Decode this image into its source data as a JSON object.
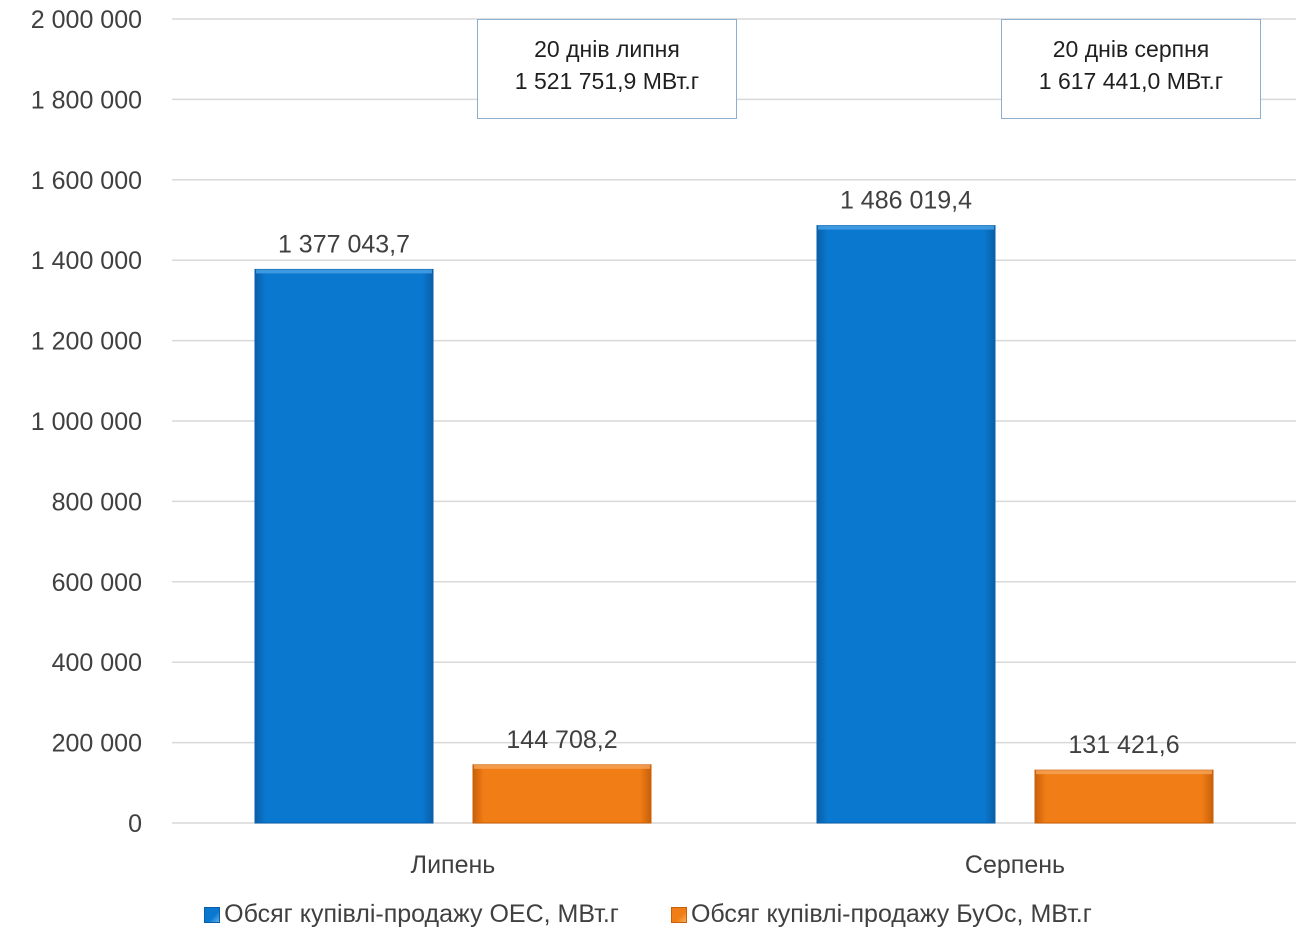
{
  "chart_data": {
    "type": "bar",
    "title": "",
    "xlabel": "",
    "ylabel": "",
    "categories": [
      "Липень",
      "Серпень"
    ],
    "ylim": [
      0,
      2000000
    ],
    "yticks": [
      0,
      200000,
      400000,
      600000,
      800000,
      1000000,
      1200000,
      1400000,
      1600000,
      1800000,
      2000000
    ],
    "ytick_labels": [
      "0",
      "200 000",
      "400 000",
      "600 000",
      "800 000",
      "1 000 000",
      "1 200 000",
      "1 400 000",
      "1 600 000",
      "1 800 000",
      "2 000 000"
    ],
    "grid": true,
    "legend_position": "bottom",
    "series": [
      {
        "name": "Обсяг купівлі-продажу ОЕС, МВт.г",
        "color": "#0070c0",
        "values": [
          1377043.7,
          1486019.4
        ],
        "labels": [
          "1 377 043,7",
          "1 486 019,4"
        ]
      },
      {
        "name": "Обсяг купівлі-продажу БуОс, МВт.г",
        "color": "#ed7d1a",
        "values": [
          144708.2,
          131421.6
        ],
        "labels": [
          "144 708,2",
          "131 421,6"
        ]
      }
    ],
    "annotations": [
      {
        "line1": "20 днів липня",
        "line2": "1 521 751,9 МВт.г"
      },
      {
        "line1": "20 днів серпня",
        "line2": "1 617 441,0 МВт.г"
      }
    ]
  }
}
